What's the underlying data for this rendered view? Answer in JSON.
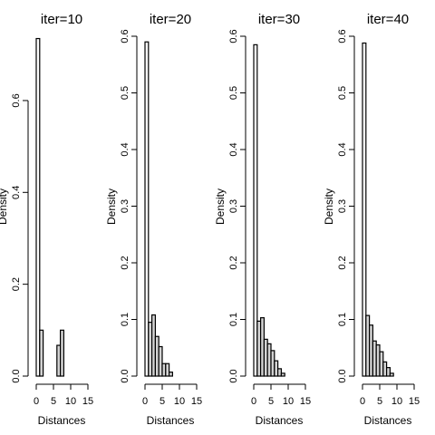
{
  "chart_data": [
    {
      "type": "bar",
      "title": "iter=10",
      "xlabel": "Distances",
      "ylabel": "Density",
      "xlim": [
        0,
        15
      ],
      "ylim": [
        0,
        0.74
      ],
      "xticks": [
        0,
        5,
        10,
        15
      ],
      "yticks": [
        0.0,
        0.2,
        0.4,
        0.6
      ],
      "bin_width": 1,
      "bins": [
        {
          "x0": 0,
          "x1": 1,
          "density": 0.735
        },
        {
          "x0": 1,
          "x1": 2,
          "density": 0.1
        },
        {
          "x0": 6,
          "x1": 7,
          "density": 0.067
        },
        {
          "x0": 7,
          "x1": 8,
          "density": 0.1
        }
      ]
    },
    {
      "type": "bar",
      "title": "iter=20",
      "xlabel": "Distances",
      "ylabel": "Density",
      "xlim": [
        0,
        15
      ],
      "ylim": [
        0,
        0.6
      ],
      "xticks": [
        0,
        5,
        10,
        15
      ],
      "yticks": [
        0.0,
        0.1,
        0.2,
        0.3,
        0.4,
        0.5,
        0.6
      ],
      "bin_width": 1,
      "bins": [
        {
          "x0": 0,
          "x1": 1,
          "density": 0.59
        },
        {
          "x0": 1,
          "x1": 2,
          "density": 0.095
        },
        {
          "x0": 2,
          "x1": 3,
          "density": 0.108
        },
        {
          "x0": 3,
          "x1": 4,
          "density": 0.07
        },
        {
          "x0": 4,
          "x1": 5,
          "density": 0.052
        },
        {
          "x0": 5,
          "x1": 6,
          "density": 0.022
        },
        {
          "x0": 6,
          "x1": 7,
          "density": 0.022
        },
        {
          "x0": 7,
          "x1": 8,
          "density": 0.007
        }
      ]
    },
    {
      "type": "bar",
      "title": "iter=30",
      "xlabel": "Distances",
      "ylabel": "Density",
      "xlim": [
        0,
        15
      ],
      "ylim": [
        0,
        0.6
      ],
      "xticks": [
        0,
        5,
        10,
        15
      ],
      "yticks": [
        0.0,
        0.1,
        0.2,
        0.3,
        0.4,
        0.5,
        0.6
      ],
      "bin_width": 1,
      "bins": [
        {
          "x0": 0,
          "x1": 1,
          "density": 0.585
        },
        {
          "x0": 1,
          "x1": 2,
          "density": 0.097
        },
        {
          "x0": 2,
          "x1": 3,
          "density": 0.103
        },
        {
          "x0": 3,
          "x1": 4,
          "density": 0.065
        },
        {
          "x0": 4,
          "x1": 5,
          "density": 0.057
        },
        {
          "x0": 5,
          "x1": 6,
          "density": 0.045
        },
        {
          "x0": 6,
          "x1": 7,
          "density": 0.027
        },
        {
          "x0": 7,
          "x1": 8,
          "density": 0.013
        },
        {
          "x0": 8,
          "x1": 9,
          "density": 0.005
        }
      ]
    },
    {
      "type": "bar",
      "title": "iter=40",
      "xlabel": "Distances",
      "ylabel": "Density",
      "xlim": [
        0,
        15
      ],
      "ylim": [
        0,
        0.6
      ],
      "xticks": [
        0,
        5,
        10,
        15
      ],
      "yticks": [
        0.0,
        0.1,
        0.2,
        0.3,
        0.4,
        0.5,
        0.6
      ],
      "bin_width": 1,
      "bins": [
        {
          "x0": 0,
          "x1": 1,
          "density": 0.588
        },
        {
          "x0": 1,
          "x1": 2,
          "density": 0.107
        },
        {
          "x0": 2,
          "x1": 3,
          "density": 0.09
        },
        {
          "x0": 3,
          "x1": 4,
          "density": 0.062
        },
        {
          "x0": 4,
          "x1": 5,
          "density": 0.055
        },
        {
          "x0": 5,
          "x1": 6,
          "density": 0.043
        },
        {
          "x0": 6,
          "x1": 7,
          "density": 0.025
        },
        {
          "x0": 7,
          "x1": 8,
          "density": 0.015
        },
        {
          "x0": 8,
          "x1": 9,
          "density": 0.005
        }
      ]
    }
  ],
  "colors": {
    "bar_fill_tall": "#ffffff",
    "bar_fill": "#d3d3d3",
    "stroke": "#000000"
  }
}
